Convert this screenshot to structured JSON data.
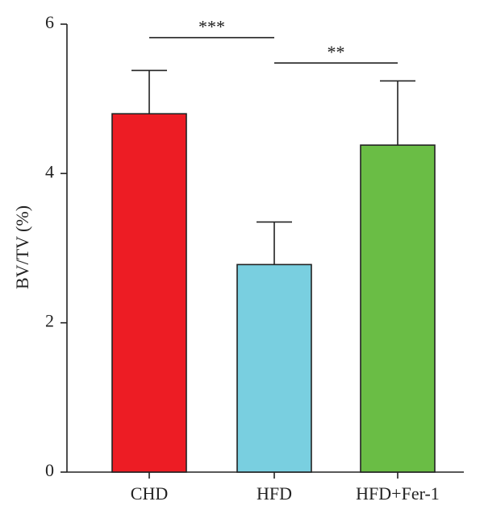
{
  "chart_data": {
    "type": "bar",
    "title": "",
    "xlabel": "",
    "ylabel": "BV/TV (%)",
    "ylim": [
      0,
      6
    ],
    "yticks": [
      0,
      2,
      4,
      6
    ],
    "grid": false,
    "categories": [
      "CHD",
      "HFD",
      "HFD+Fer-1"
    ],
    "series": [
      {
        "values": [
          4.8,
          2.78,
          4.38
        ],
        "errors": [
          0.58,
          0.57,
          0.86
        ],
        "colors": [
          "#ed1c24",
          "#79cfe0",
          "#6abd45"
        ]
      }
    ],
    "annotations": [
      {
        "from": "CHD",
        "to": "HFD",
        "label": "***",
        "y": 5.82
      },
      {
        "from": "HFD",
        "to": "HFD+Fer-1",
        "label": "**",
        "y": 5.48
      }
    ]
  }
}
